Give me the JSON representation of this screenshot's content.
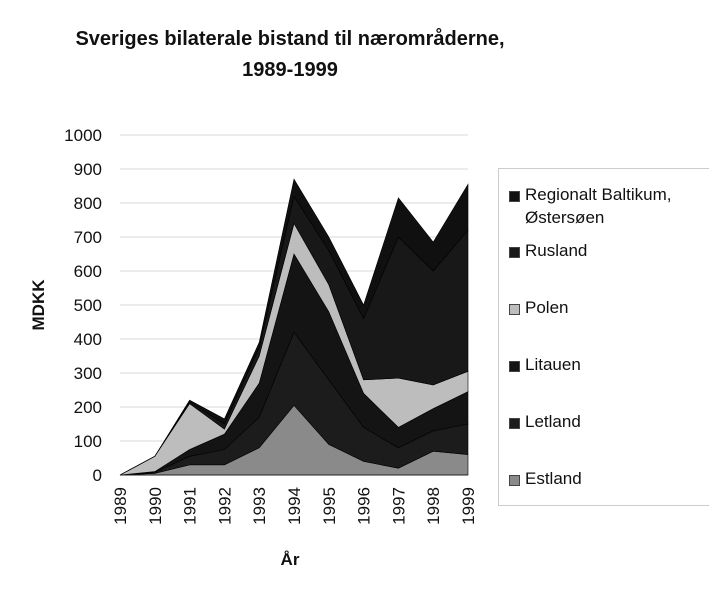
{
  "chart_data": {
    "type": "stacked_area",
    "title": "Sveriges bilaterale bistand til nærområderne, 1989-1999",
    "x_label": "År",
    "y_label": "MDKK",
    "categories": [
      "1989",
      "1990",
      "1991",
      "1992",
      "1993",
      "1994",
      "1995",
      "1996",
      "1997",
      "1998",
      "1999"
    ],
    "series": [
      {
        "name": "Estland",
        "color": "#8a8a8a",
        "values": [
          0,
          5,
          30,
          30,
          80,
          205,
          90,
          40,
          20,
          70,
          60
        ]
      },
      {
        "name": "Letland",
        "color": "#1c1c1c",
        "values": [
          0,
          3,
          25,
          45,
          90,
          215,
          190,
          100,
          60,
          60,
          90
        ]
      },
      {
        "name": "Litauen",
        "color": "#141414",
        "values": [
          0,
          2,
          20,
          45,
          100,
          230,
          200,
          100,
          60,
          65,
          95
        ]
      },
      {
        "name": "Polen",
        "color": "#bdbdbd",
        "values": [
          0,
          45,
          135,
          15,
          80,
          90,
          80,
          40,
          145,
          70,
          60
        ]
      },
      {
        "name": "Rusland",
        "color": "#181818",
        "values": [
          0,
          0,
          5,
          15,
          25,
          80,
          100,
          180,
          415,
          335,
          415
        ]
      },
      {
        "name": "Regionalt Baltikum, Østersøen",
        "color": "#101010",
        "values": [
          0,
          0,
          5,
          15,
          15,
          50,
          40,
          40,
          115,
          85,
          135
        ]
      }
    ],
    "ylim": [
      0,
      1000
    ],
    "yticks": [
      0,
      100,
      200,
      300,
      400,
      500,
      600,
      700,
      800,
      900,
      1000
    ],
    "grid": true
  }
}
